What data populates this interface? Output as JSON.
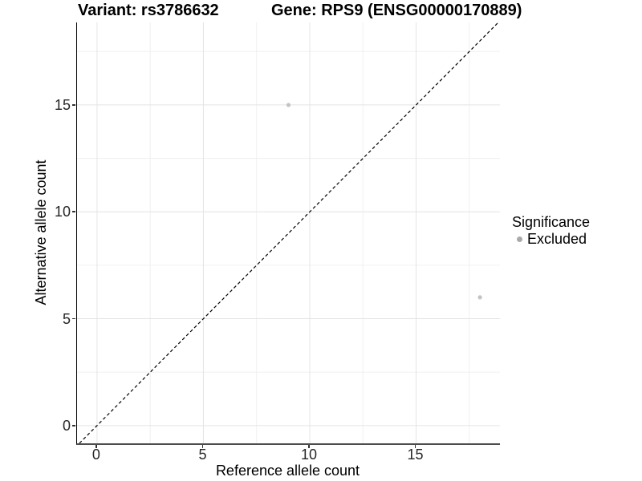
{
  "title": {
    "variant": "Variant: rs3786632",
    "gene": "Gene: RPS9 (ENSG00000170889)"
  },
  "chart_data": {
    "type": "scatter",
    "title": "Variant: rs3786632    Gene: RPS9 (ENSG00000170889)",
    "xlabel": "Reference allele count",
    "ylabel": "Alternative allele count",
    "xlim": [
      -0.94,
      18.94
    ],
    "ylim": [
      -0.83,
      18.86
    ],
    "x_major_ticks": [
      0,
      5,
      10,
      15
    ],
    "y_major_ticks": [
      0,
      5,
      10,
      15
    ],
    "x_minor_ticks": [
      2.5,
      7.5,
      12.5,
      17.5
    ],
    "y_minor_ticks": [
      2.5,
      7.5,
      12.5,
      17.5
    ],
    "grid": true,
    "points": [
      {
        "x": 9,
        "y": 15,
        "series": "Excluded"
      },
      {
        "x": 18,
        "y": 6,
        "series": "Excluded"
      }
    ],
    "reference_line": {
      "type": "abline",
      "intercept": 0,
      "slope": 1,
      "style": "dashed",
      "color": "#000000"
    },
    "legend": {
      "title": "Significance",
      "position": "right",
      "items": [
        {
          "label": "Excluded",
          "color": "#a9a9a9"
        }
      ]
    }
  },
  "colors": {
    "point": "#c3c3c3",
    "legend_key": "#a9a9a9",
    "grid_major": "#e4e4e4",
    "grid_minor": "#f0f0f0",
    "diagonal": "#000000",
    "tick_mark": "#333333"
  }
}
